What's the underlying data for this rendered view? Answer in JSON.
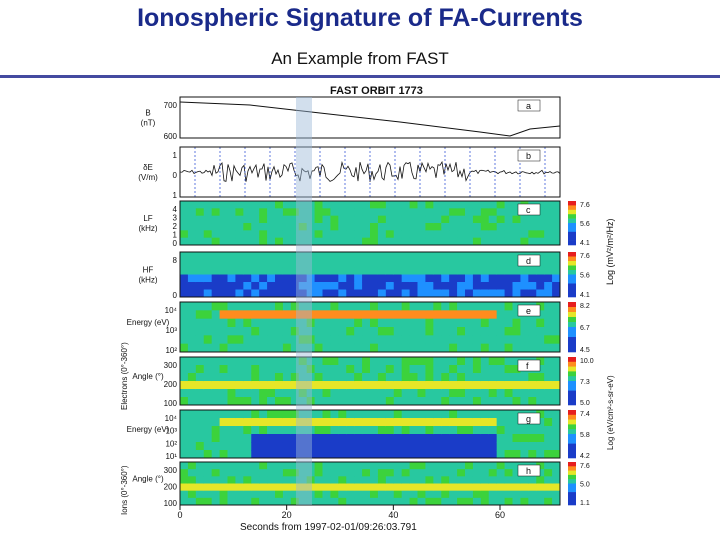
{
  "header": {
    "title": "Ionospheric Signature of FA-Currents",
    "subtitle": "An Example from FAST"
  },
  "figure": {
    "plot_title": "FAST ORBIT 1773",
    "xlabel": "Seconds from 1997-02-01/09:26:03.791",
    "xticks": [
      "0",
      "20",
      "40",
      "60"
    ],
    "panels": [
      {
        "letter": "a",
        "ylabel": [
          "B",
          "(nT)"
        ],
        "ticks": [
          "700",
          "600"
        ]
      },
      {
        "letter": "b",
        "ylabel": [
          "δE",
          "(V/m)"
        ],
        "ticks": [
          "1",
          "0",
          "1"
        ]
      },
      {
        "letter": "c",
        "ylabel": [
          "LF",
          "(kHz)"
        ],
        "ticks": [
          "4",
          "3",
          "2",
          "1",
          "0"
        ]
      },
      {
        "letter": "d",
        "ylabel": [
          "HF",
          "(kHz)"
        ],
        "ticks": [
          "8",
          "0"
        ]
      },
      {
        "letter": "e",
        "ylabel": [
          "Energy (eV)"
        ],
        "ticks": [
          "10⁴",
          "10³",
          "10²"
        ]
      },
      {
        "letter": "f",
        "ylabel": [
          "Angle (°)"
        ],
        "ticks": [
          "300",
          "200",
          "100"
        ]
      },
      {
        "letter": "g",
        "ylabel": [
          "Energy (eV)"
        ],
        "ticks": [
          "10⁴",
          "10³",
          "10²",
          "10¹"
        ]
      },
      {
        "letter": "h",
        "ylabel": [
          "Angle (°)"
        ],
        "ticks": [
          "300",
          "200",
          "100"
        ]
      }
    ],
    "left_group_labels": [
      "Electrons (0°-360°)",
      "Ions (0°-360°)"
    ],
    "colorbars": [
      {
        "ticks": [
          "7.6",
          "5.6",
          "4.1"
        ]
      },
      {
        "ticks": [
          "7.6",
          "5.6",
          "4.1"
        ]
      },
      {
        "ticks": [
          "8.2",
          "6.7",
          "4.5"
        ]
      },
      {
        "ticks": [
          "10.0",
          "7.3",
          "5.0"
        ]
      },
      {
        "ticks": [
          "7.4",
          "5.8",
          "4.2"
        ]
      },
      {
        "ticks": [
          "7.6",
          "5.0",
          "1.1"
        ]
      }
    ],
    "right_labels": [
      "Log (mV²/m²/Hz)",
      "Log (eV/cm²-s-sr-eV)"
    ],
    "colors": {
      "title": "#1a2a8a",
      "rule": "#444aa0",
      "highlight": "#9bb8d8"
    }
  }
}
